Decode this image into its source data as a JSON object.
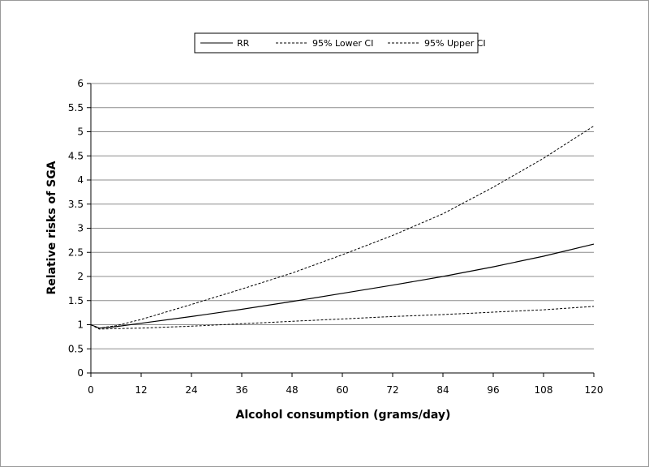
{
  "chart_data": {
    "type": "line",
    "title": "",
    "xlabel": "Alcohol consumption (grams/day)",
    "ylabel": "Relative risks of SGA",
    "xlim": [
      0,
      120
    ],
    "ylim": [
      0,
      6
    ],
    "xticks": [
      0,
      12,
      24,
      36,
      48,
      60,
      72,
      84,
      96,
      108,
      120
    ],
    "yticks": [
      0,
      0.5,
      1,
      1.5,
      2,
      2.5,
      3,
      3.5,
      4,
      4.5,
      5,
      5.5,
      6
    ],
    "xtick_labels": [
      "0",
      "12",
      "24",
      "36",
      "48",
      "60",
      "72",
      "84",
      "96",
      "108",
      "120"
    ],
    "ytick_labels": [
      "0",
      "0.5",
      "1",
      "1.5",
      "2",
      "2.5",
      "3",
      "3.5",
      "4",
      "4.5",
      "5",
      "5.5",
      "6"
    ],
    "grid": "horizontal",
    "legend_position": "top-center",
    "x": [
      0,
      2,
      6,
      12,
      24,
      36,
      48,
      60,
      72,
      84,
      96,
      108,
      120
    ],
    "series": [
      {
        "name": "RR",
        "style": "solid",
        "values": [
          1.0,
          0.93,
          0.96,
          1.03,
          1.17,
          1.32,
          1.48,
          1.65,
          1.82,
          2.0,
          2.2,
          2.42,
          2.67
        ]
      },
      {
        "name": "95% Lower CI",
        "style": "dashed",
        "values": [
          1.0,
          0.91,
          0.92,
          0.93,
          0.97,
          1.02,
          1.07,
          1.12,
          1.17,
          1.21,
          1.26,
          1.31,
          1.38
        ]
      },
      {
        "name": "95% Upper CI",
        "style": "dashed",
        "values": [
          1.0,
          0.93,
          0.98,
          1.11,
          1.42,
          1.74,
          2.07,
          2.45,
          2.85,
          3.3,
          3.85,
          4.45,
          5.12
        ]
      }
    ]
  }
}
